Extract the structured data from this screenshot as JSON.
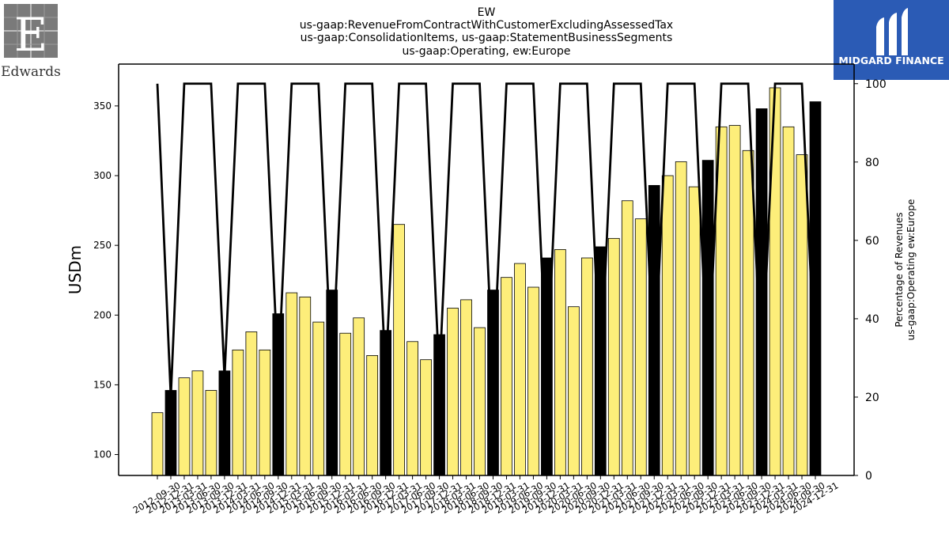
{
  "logos": {
    "left": {
      "text": "Edwards",
      "icon": "edwards-e-logo-icon"
    },
    "right": {
      "text": "MIDGARD FINANCE",
      "icon": "midgard-m-logo-icon",
      "color": "#2b5bb5"
    }
  },
  "chart_data": {
    "type": "bar",
    "title": [
      "EW",
      "us-gaap:RevenueFromContractWithCustomerExcludingAssessedTax",
      "us-gaap:ConsolidationItems, us-gaap:StatementBusinessSegments",
      "us-gaap:Operating, ew:Europe"
    ],
    "ylabel": "USDm",
    "y2label": [
      "Percentage of Revenues",
      "us-gaap:Operating ew:Europe"
    ],
    "ylim": [
      85,
      380
    ],
    "y2lim": [
      0,
      105
    ],
    "yticks": [
      100,
      150,
      200,
      250,
      300,
      350
    ],
    "y2ticks": [
      0,
      20,
      40,
      60,
      80,
      100
    ],
    "bar_colors": {
      "quarter": "#fdee7a",
      "annual": "#000000"
    },
    "line_color": "#000000",
    "categories": [
      "2012-09-30",
      "2012-12-31",
      "2013-03-31",
      "2013-06-30",
      "2013-09-30",
      "2013-12-31",
      "2014-03-31",
      "2014-06-30",
      "2014-09-30",
      "2014-12-31",
      "2015-03-31",
      "2015-06-30",
      "2015-09-30",
      "2015-12-31",
      "2016-03-31",
      "2016-06-30",
      "2016-09-30",
      "2016-12-31",
      "2017-03-31",
      "2017-06-30",
      "2017-09-30",
      "2017-12-31",
      "2018-03-31",
      "2018-06-30",
      "2018-09-30",
      "2018-12-31",
      "2019-03-31",
      "2019-06-30",
      "2019-09-30",
      "2019-12-31",
      "2020-03-31",
      "2020-06-30",
      "2020-09-30",
      "2020-12-31",
      "2021-03-31",
      "2021-06-30",
      "2021-09-30",
      "2021-12-31",
      "2022-03-31",
      "2022-06-30",
      "2022-09-30",
      "2022-12-31",
      "2023-03-31",
      "2023-06-30",
      "2023-09-30",
      "2023-12-31",
      "2024-03-31",
      "2024-06-30",
      "2024-09-30",
      "2024-12-31"
    ],
    "values": [
      130,
      146,
      155,
      160,
      146,
      160,
      175,
      188,
      175,
      201,
      216,
      213,
      195,
      218,
      187,
      198,
      171,
      189,
      265,
      181,
      168,
      186,
      205,
      211,
      191,
      218,
      227,
      237,
      220,
      241,
      247,
      206,
      241,
      249,
      255,
      282,
      269,
      293,
      300,
      310,
      292,
      311,
      335,
      336,
      318,
      348,
      363,
      335,
      315,
      353
    ],
    "annual": [
      false,
      true,
      false,
      false,
      false,
      true,
      false,
      false,
      false,
      true,
      false,
      false,
      false,
      true,
      false,
      false,
      false,
      true,
      false,
      false,
      false,
      true,
      false,
      false,
      false,
      true,
      false,
      false,
      false,
      true,
      false,
      false,
      false,
      true,
      false,
      false,
      false,
      true,
      false,
      false,
      false,
      true,
      false,
      false,
      false,
      true,
      false,
      false,
      false,
      true
    ],
    "percent": [
      100,
      20,
      100,
      100,
      100,
      25,
      100,
      100,
      100,
      25,
      100,
      100,
      100,
      25,
      100,
      100,
      100,
      25,
      100,
      100,
      100,
      25,
      100,
      100,
      100,
      25,
      100,
      100,
      100,
      25,
      100,
      100,
      100,
      25,
      100,
      100,
      100,
      25,
      100,
      100,
      100,
      25,
      100,
      100,
      100,
      25,
      100,
      100,
      100,
      25
    ]
  }
}
